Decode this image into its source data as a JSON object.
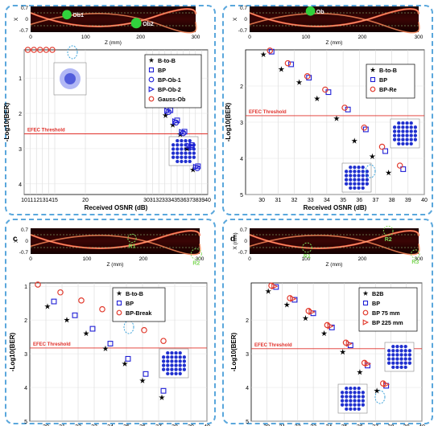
{
  "chart_data": [
    {
      "panel": "a",
      "type": "scatter",
      "inset_labels": [
        "Ob1",
        "Ob2"
      ],
      "inset_x_axis": {
        "label": "Z (mm)",
        "ticks": [
          "0",
          "100",
          "200",
          "300"
        ]
      },
      "inset_y_axis": {
        "label": "X",
        "ticks": [
          "0.7",
          "0",
          "-0.7"
        ]
      },
      "xlabel": "Received OSNR (dB)",
      "ylabel": "-Log10(BER)",
      "xlim": [
        10,
        40
      ],
      "x_ticks": [
        10,
        11,
        12,
        13,
        14,
        15,
        20,
        30,
        31,
        32,
        33,
        34,
        35,
        36,
        37,
        38,
        39,
        40
      ],
      "y_ticks": [
        1,
        2,
        3,
        4
      ],
      "threshold_label": "EFEC Threshold",
      "threshold_y": 2.58,
      "series": [
        {
          "name": "B-to-B",
          "marker": "star",
          "color": "#000000",
          "x": [
            30.6,
            31.8,
            33.1,
            34.3,
            35.5,
            36.6,
            37.6
          ],
          "y": [
            1.45,
            1.76,
            2.06,
            2.33,
            2.6,
            3.0,
            3.6
          ]
        },
        {
          "name": "BP",
          "marker": "square",
          "color": "#1f1fd6",
          "x": [
            31.4,
            32.6,
            33.9,
            35.0,
            36.2,
            37.4,
            38.4
          ],
          "y": [
            1.3,
            1.6,
            1.91,
            2.2,
            2.52,
            2.9,
            3.5
          ]
        },
        {
          "name": "BP-Ob-1",
          "marker": "circle",
          "color": "#1f1fd6",
          "x": [
            31.1,
            32.3,
            33.6,
            34.8,
            36.0,
            37.2,
            38.3
          ],
          "y": [
            1.36,
            1.66,
            1.96,
            2.26,
            2.56,
            2.95,
            3.55
          ]
        },
        {
          "name": "BP-Ob-2",
          "marker": "triangle-right",
          "color": "#1f1fd6",
          "x": [
            31.0,
            32.2,
            33.4,
            34.7,
            35.8,
            37.0,
            38.1
          ],
          "y": [
            1.33,
            1.63,
            1.93,
            2.23,
            2.53,
            2.92,
            3.52
          ]
        },
        {
          "name": "Gauss-Ob",
          "marker": "circle-open",
          "color": "#e23b2e",
          "x": [
            10.6,
            11.6,
            12.6,
            13.6,
            14.6
          ],
          "y": [
            0.2,
            0.2,
            0.2,
            0.2,
            0.2
          ]
        }
      ]
    },
    {
      "panel": "b",
      "type": "scatter",
      "inset_labels": [
        "Ob"
      ],
      "inset_x_axis": {
        "label": "Z (mm)",
        "ticks": [
          "0",
          "100",
          "200",
          "300"
        ]
      },
      "inset_y_axis": {
        "label": "X",
        "ticks": [
          "0.7",
          "0",
          "-0.7"
        ]
      },
      "xlabel": "Received OSNR (dB)",
      "ylabel": "-Log10(BER)",
      "xlim": [
        29,
        40
      ],
      "x_ticks": [
        30,
        31,
        32,
        33,
        34,
        35,
        36,
        37,
        38,
        39,
        40
      ],
      "y_ticks": [
        2,
        3,
        4,
        5
      ],
      "threshold_label": "EFEC Threshold",
      "threshold_y": 2.82,
      "series": [
        {
          "name": "B-to-B",
          "marker": "star",
          "color": "#000000",
          "x": [
            30.1,
            31.2,
            32.3,
            33.4,
            34.6,
            35.7,
            36.8,
            37.8
          ],
          "y": [
            1.13,
            1.54,
            1.9,
            2.35,
            2.9,
            3.52,
            3.95,
            4.4
          ]
        },
        {
          "name": "BP",
          "marker": "square",
          "color": "#1f1fd6",
          "x": [
            30.6,
            31.8,
            32.9,
            34.1,
            35.3,
            36.4,
            37.6,
            38.7
          ],
          "y": [
            1.05,
            1.4,
            1.77,
            2.17,
            2.65,
            3.2,
            3.8,
            4.3
          ]
        },
        {
          "name": "BP-Re",
          "marker": "circle-open",
          "color": "#e23b2e",
          "x": [
            30.5,
            31.6,
            32.8,
            33.9,
            35.1,
            36.3,
            37.4,
            38.5
          ],
          "y": [
            1.02,
            1.37,
            1.73,
            2.1,
            2.6,
            3.15,
            3.68,
            4.2
          ]
        }
      ]
    },
    {
      "panel": "c",
      "type": "scatter",
      "inset_labels": [
        "R1",
        "R2"
      ],
      "inset_x_axis": {
        "label": "Z (mm)",
        "ticks": [
          "0",
          "100",
          "200",
          "300"
        ]
      },
      "inset_y_axis": {
        "label": "X",
        "ticks": [
          "0.7",
          "0",
          "-0.7"
        ]
      },
      "xlabel": "",
      "ylabel": "-Log10(BER)",
      "xlim": [
        29,
        40
      ],
      "x_ticks": [
        30,
        31,
        32,
        33,
        34,
        35,
        36,
        37,
        38,
        39,
        40
      ],
      "y_ticks": [
        1,
        2,
        3,
        4,
        5
      ],
      "threshold_label": "EFEC Threshold",
      "threshold_y": 2.83,
      "series": [
        {
          "name": "B-to-B",
          "marker": "star",
          "color": "#000000",
          "x": [
            30.1,
            31.3,
            32.5,
            33.7,
            34.9,
            36.0,
            37.2
          ],
          "y": [
            1.6,
            2.0,
            2.4,
            2.85,
            3.3,
            3.8,
            4.3
          ]
        },
        {
          "name": "BP",
          "marker": "square",
          "color": "#1f1fd6",
          "x": [
            30.5,
            31.8,
            32.9,
            34.0,
            35.1,
            36.2,
            37.3
          ],
          "y": [
            1.45,
            1.86,
            2.26,
            2.7,
            3.15,
            3.6,
            4.1
          ]
        },
        {
          "name": "BP-Break",
          "marker": "circle-open",
          "color": "#e23b2e",
          "x": [
            29.5,
            30.9,
            32.2,
            33.5,
            34.8,
            36.1,
            37.3
          ],
          "y": [
            0.95,
            1.18,
            1.42,
            1.68,
            1.95,
            2.3,
            2.62
          ]
        }
      ]
    },
    {
      "panel": "d",
      "type": "scatter",
      "inset_labels": [
        "R1",
        "R2",
        "R3"
      ],
      "inset_x_axis": {
        "label": "Z (mm)",
        "ticks": [
          "0",
          "100",
          "200",
          "300"
        ]
      },
      "inset_y_axis": {
        "label": "X (mm)",
        "ticks": [
          "0.7",
          "0",
          "-0.7"
        ]
      },
      "xlabel": "",
      "ylabel": "-Log10(BER)",
      "xlim": [
        29,
        40
      ],
      "x_ticks": [
        30,
        31,
        32,
        33,
        34,
        35,
        36,
        37,
        38,
        39,
        40
      ],
      "y_ticks": [
        2,
        3,
        4,
        5
      ],
      "threshold_label": "EFEC Threshold",
      "threshold_y": 2.85,
      "series": [
        {
          "name": "B2B",
          "marker": "star",
          "color": "#000000",
          "x": [
            30.1,
            31.3,
            32.5,
            33.7,
            34.9,
            36.0,
            37.1
          ],
          "y": [
            1.15,
            1.55,
            1.95,
            2.4,
            2.95,
            3.55,
            4.1
          ]
        },
        {
          "name": "BP",
          "marker": "square",
          "color": "#1f1fd6",
          "x": [
            30.6,
            31.8,
            33.0,
            34.2,
            35.4,
            36.5,
            37.7
          ],
          "y": [
            1.02,
            1.4,
            1.8,
            2.22,
            2.75,
            3.35,
            3.95
          ]
        },
        {
          "name": "BP 75 mm",
          "marker": "circle-open",
          "color": "#e23b2e",
          "x": [
            30.3,
            31.5,
            32.7,
            33.9,
            35.1,
            36.3,
            37.5
          ],
          "y": [
            0.98,
            1.35,
            1.73,
            2.15,
            2.67,
            3.27,
            3.88
          ]
        },
        {
          "name": "BP 225 mm",
          "marker": "triangle-right",
          "color": "#e23b2e",
          "x": [
            30.5,
            31.7,
            32.9,
            34.1,
            35.3,
            36.5,
            37.7
          ],
          "y": [
            1.0,
            1.37,
            1.76,
            2.18,
            2.7,
            3.3,
            3.91
          ]
        }
      ]
    }
  ],
  "panel_labels": {
    "c": "c",
    "d": "d"
  }
}
